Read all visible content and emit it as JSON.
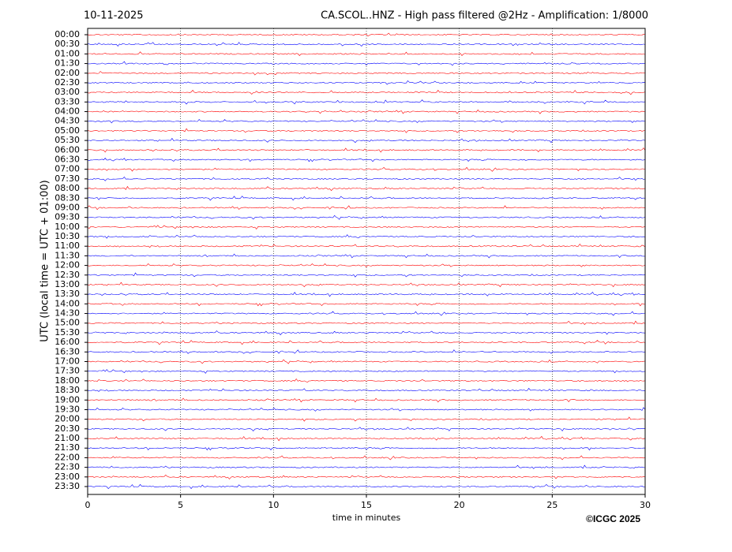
{
  "chart_data": {
    "type": "helicorder",
    "date": "10-11-2025",
    "title": "CA.SCOL..HNZ - High pass filtered @2Hz - Amplification: 1/8000",
    "y_label": "UTC (local time = UTC + 01:00)",
    "x_label": "time in minutes",
    "credit": "©ICGC 2025",
    "rows": [
      "00:00",
      "00:30",
      "01:00",
      "01:30",
      "02:00",
      "02:30",
      "03:00",
      "03:30",
      "04:00",
      "04:30",
      "05:00",
      "05:30",
      "06:00",
      "06:30",
      "07:00",
      "07:30",
      "08:00",
      "08:30",
      "09:00",
      "09:30",
      "10:00",
      "10:30",
      "11:00",
      "11:30",
      "12:00",
      "12:30",
      "13:00",
      "13:30",
      "14:00",
      "14:30",
      "15:00",
      "15:30",
      "16:00",
      "16:30",
      "17:00",
      "17:30",
      "18:00",
      "18:30",
      "19:00",
      "19:30",
      "20:00",
      "20:30",
      "21:00",
      "21:30",
      "22:00",
      "22:30",
      "23:00",
      "23:30"
    ],
    "trace_colors": [
      "red",
      "blue"
    ],
    "xlim": [
      0,
      30
    ],
    "xticks": [
      0,
      5,
      10,
      15,
      20,
      25,
      30
    ],
    "grid": true
  }
}
